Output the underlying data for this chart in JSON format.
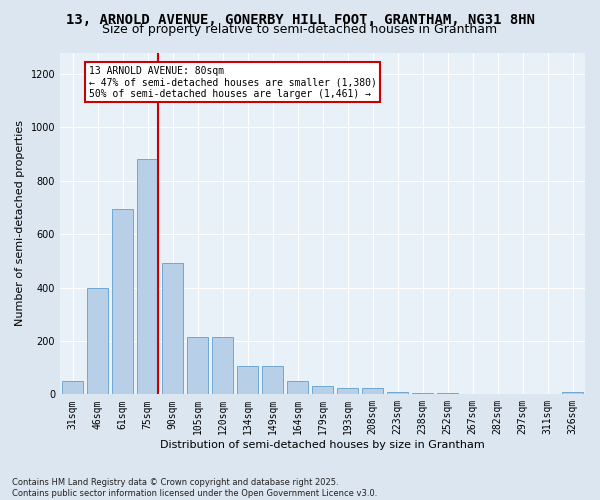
{
  "title1": "13, ARNOLD AVENUE, GONERBY HILL FOOT, GRANTHAM, NG31 8HN",
  "title2": "Size of property relative to semi-detached houses in Grantham",
  "xlabel": "Distribution of semi-detached houses by size in Grantham",
  "ylabel": "Number of semi-detached properties",
  "categories": [
    "31sqm",
    "46sqm",
    "61sqm",
    "75sqm",
    "90sqm",
    "105sqm",
    "120sqm",
    "134sqm",
    "149sqm",
    "164sqm",
    "179sqm",
    "193sqm",
    "208sqm",
    "223sqm",
    "238sqm",
    "252sqm",
    "267sqm",
    "282sqm",
    "297sqm",
    "311sqm",
    "326sqm"
  ],
  "values": [
    50,
    400,
    695,
    880,
    490,
    215,
    215,
    105,
    105,
    50,
    30,
    25,
    25,
    10,
    5,
    5,
    3,
    2,
    2,
    1,
    8
  ],
  "bar_color": "#b8cfe8",
  "bar_edge_color": "#6fa8d4",
  "vline_x_idx": 3,
  "vline_color": "#cc0000",
  "annotation_title": "13 ARNOLD AVENUE: 80sqm",
  "annotation_line1": "← 47% of semi-detached houses are smaller (1,380)",
  "annotation_line2": "50% of semi-detached houses are larger (1,461) →",
  "annotation_box_color": "#ffffff",
  "annotation_box_edge": "#cc0000",
  "ylim": [
    0,
    1280
  ],
  "yticks": [
    0,
    200,
    400,
    600,
    800,
    1000,
    1200
  ],
  "footnote1": "Contains HM Land Registry data © Crown copyright and database right 2025.",
  "footnote2": "Contains public sector information licensed under the Open Government Licence v3.0.",
  "bg_color": "#dce6f0",
  "plot_bg_color": "#e8f0f8",
  "title1_fontsize": 10,
  "title2_fontsize": 9,
  "xlabel_fontsize": 8,
  "ylabel_fontsize": 8,
  "tick_fontsize": 7,
  "footnote_fontsize": 6
}
